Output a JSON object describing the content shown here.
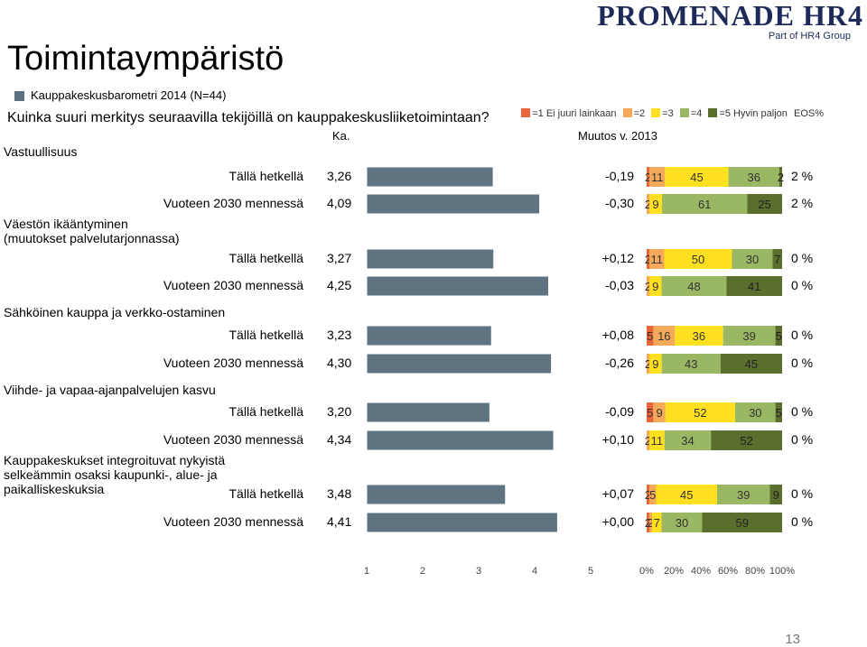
{
  "page": {
    "title": "Toimintaympäristö",
    "subtitle": "Kauppakeskusbarometri 2014 (N=44)",
    "question": "Kuinka suuri merkitys seuraavilla tekijöillä on kauppakeskusliiketoimintaan?",
    "col_ka": "Ka.",
    "col_muutos": "Muutos v. 2013",
    "page_number": "13"
  },
  "logo": {
    "text": "PROMENADE HR4",
    "tagline": "Part of HR4 Group"
  },
  "legend": [
    {
      "label": "=1 Ei juuri lainkaan",
      "color": "#e8663a"
    },
    {
      "label": "=2",
      "color": "#f5a95a"
    },
    {
      "label": "=3",
      "color": "#ffe020"
    },
    {
      "label": "=4",
      "color": "#9ab763"
    },
    {
      "label": "=5 Hyvin paljon",
      "color": "#5a6e2e"
    },
    {
      "label": "EOS%",
      "color": ""
    }
  ],
  "chart_data": {
    "type": "bar",
    "mean_axis": {
      "ticks": [
        "1",
        "2",
        "3",
        "4",
        "5"
      ],
      "range": [
        1,
        5
      ]
    },
    "dist_axis": {
      "ticks": [
        "0%",
        "20%",
        "40%",
        "60%",
        "80%",
        "100%"
      ],
      "range": [
        0,
        100
      ]
    },
    "categories": [
      {
        "label": "Vastuullisuus",
        "rows": [
          {
            "label": "Tällä hetkellä",
            "mean": 3.26,
            "mean_text": "3,26",
            "change": "-0,19",
            "dist": [
              2,
              11,
              45,
              36,
              2
            ],
            "eos": "2 %"
          },
          {
            "label": "Vuoteen 2030 mennessä",
            "mean": 4.09,
            "mean_text": "4,09",
            "change": "-0,30",
            "dist": [
              0,
              2,
              9,
              61,
              25
            ],
            "eos": "2 %"
          }
        ]
      },
      {
        "label": "Väestön ikääntyminen  (muutokset palvelutarjonnassa)",
        "rows": [
          {
            "label": "Tällä hetkellä",
            "mean": 3.27,
            "mean_text": "3,27",
            "change": "+0,12",
            "dist": [
              2,
              11,
              50,
              30,
              7
            ],
            "eos": "0 %"
          },
          {
            "label": "Vuoteen 2030 mennessä",
            "mean": 4.25,
            "mean_text": "4,25",
            "change": "-0,03",
            "dist": [
              0,
              2,
              9,
              48,
              41
            ],
            "eos": "0 %"
          }
        ]
      },
      {
        "label": "Sähköinen kauppa ja verkko-ostaminen",
        "rows": [
          {
            "label": "Tällä hetkellä",
            "mean": 3.23,
            "mean_text": "3,23",
            "change": "+0,08",
            "dist": [
              5,
              16,
              36,
              39,
              5
            ],
            "eos": "0 %"
          },
          {
            "label": "Vuoteen 2030 mennessä",
            "mean": 4.3,
            "mean_text": "4,30",
            "change": "-0,26",
            "dist": [
              0,
              2,
              9,
              43,
              45
            ],
            "eos": "0 %"
          }
        ]
      },
      {
        "label": "Viihde- ja vapaa-ajanpalvelujen kasvu",
        "rows": [
          {
            "label": "Tällä hetkellä",
            "mean": 3.2,
            "mean_text": "3,20",
            "change": "-0,09",
            "dist": [
              5,
              9,
              52,
              30,
              5
            ],
            "eos": "0 %"
          },
          {
            "label": "Vuoteen 2030 mennessä",
            "mean": 4.34,
            "mean_text": "4,34",
            "change": "+0,10",
            "dist": [
              0,
              2,
              11,
              34,
              52
            ],
            "eos": "0 %"
          }
        ]
      },
      {
        "label": "Kauppakeskukset integroituvat nykyistä  selkeämmin osaksi kaupunki-, alue- ja paikalliskeskuksia",
        "rows": [
          {
            "label": "Tällä hetkellä",
            "mean": 3.48,
            "mean_text": "3,48",
            "change": "+0,07",
            "dist": [
              0,
              2,
              5,
              45,
              39,
              9
            ],
            "eos": "0 %"
          },
          {
            "label": "Vuoteen 2030 mennessä",
            "mean": 4.41,
            "mean_text": "4,41",
            "change": "+0,00",
            "dist": [
              0,
              2,
              2,
              7,
              30,
              59
            ],
            "eos": "0 %"
          }
        ]
      }
    ]
  }
}
